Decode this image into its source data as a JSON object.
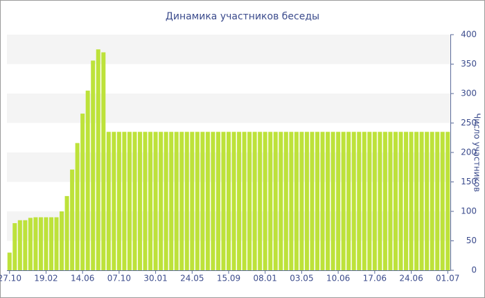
{
  "chart_data": {
    "type": "bar",
    "title": "Динамика участников беседы",
    "y_label": "Число участников",
    "categories": [
      "27.10",
      null,
      null,
      null,
      null,
      null,
      null,
      "19.02",
      null,
      null,
      null,
      null,
      null,
      null,
      "14.06",
      null,
      null,
      null,
      null,
      null,
      null,
      "07.10",
      null,
      null,
      null,
      null,
      null,
      null,
      "30.01",
      null,
      null,
      null,
      null,
      null,
      null,
      "24.05",
      null,
      null,
      null,
      null,
      null,
      null,
      "15.09",
      null,
      null,
      null,
      null,
      null,
      null,
      "08.01",
      null,
      null,
      null,
      null,
      null,
      null,
      "03.05",
      null,
      null,
      null,
      null,
      null,
      null,
      "10.06",
      null,
      null,
      null,
      null,
      null,
      null,
      "17.06",
      null,
      null,
      null,
      null,
      null,
      null,
      "24.06",
      null,
      null,
      null,
      null,
      null,
      null,
      "01.07"
    ],
    "values": [
      30,
      80,
      85,
      85,
      89,
      90,
      90,
      90,
      90,
      90,
      100,
      126,
      171,
      216,
      266,
      305,
      356,
      375,
      370,
      235,
      235,
      235,
      235,
      235,
      235,
      235,
      235,
      235,
      235,
      235,
      235,
      235,
      235,
      235,
      235,
      235,
      235,
      235,
      235,
      235,
      235,
      235,
      235,
      235,
      235,
      235,
      235,
      235,
      235,
      235,
      235,
      235,
      235,
      235,
      235,
      235,
      235,
      235,
      235,
      235,
      235,
      235,
      235,
      235,
      235,
      235,
      235,
      235,
      235,
      235,
      235,
      235,
      235,
      235,
      235,
      235,
      235,
      235,
      235,
      235,
      235,
      235,
      235,
      235,
      235
    ],
    "color": "#bde23a",
    "ylim": [
      0,
      400
    ],
    "yticks": [
      0,
      50,
      100,
      150,
      200,
      250,
      300,
      350,
      400
    ],
    "grid": true
  }
}
